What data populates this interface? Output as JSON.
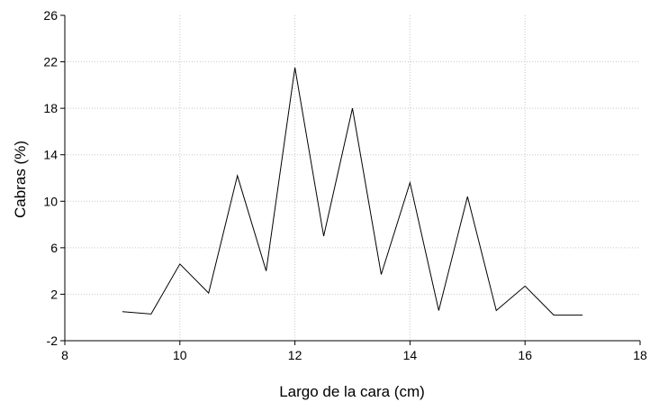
{
  "chart_data": {
    "type": "line",
    "title": "",
    "xlabel": "Largo de la cara (cm)",
    "ylabel": "Cabras (%)",
    "xlim": [
      8,
      18
    ],
    "ylim": [
      -2,
      26
    ],
    "xticks": [
      8,
      10,
      12,
      14,
      16,
      18
    ],
    "yticks": [
      -2,
      2,
      6,
      10,
      14,
      18,
      22,
      26
    ],
    "grid": true,
    "series": [
      {
        "x": [
          9,
          9.5,
          10,
          10.5,
          11,
          11.5,
          12,
          12.5,
          13,
          13.5,
          14,
          14.5,
          15,
          15.5,
          16,
          16.5,
          17
        ],
        "y": [
          0.5,
          0.3,
          4.6,
          2.1,
          12.2,
          4.0,
          21.5,
          7.0,
          18.0,
          3.7,
          11.6,
          0.6,
          10.4,
          0.6,
          2.7,
          0.2,
          0.2
        ],
        "color": "#000000"
      }
    ]
  }
}
